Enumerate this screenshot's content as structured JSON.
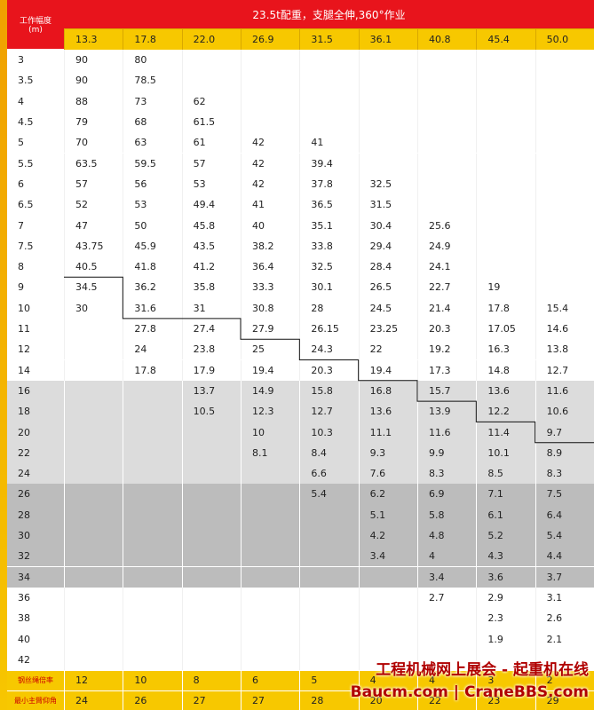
{
  "header": {
    "label_lines": [
      "工作幅度",
      "(m)"
    ],
    "title": "23.5t配重，支腿全伸,360°作业",
    "boom_lengths": [
      "13.3",
      "17.8",
      "22.0",
      "26.9",
      "31.5",
      "36.1",
      "40.8",
      "45.4",
      "50.0"
    ]
  },
  "table": {
    "rows": [
      {
        "radius": "3",
        "values": [
          "90",
          "80",
          null,
          null,
          null,
          null,
          null,
          null,
          null
        ]
      },
      {
        "radius": "3.5",
        "values": [
          "90",
          "78.5",
          null,
          null,
          null,
          null,
          null,
          null,
          null
        ]
      },
      {
        "radius": "4",
        "values": [
          "88",
          "73",
          "62",
          null,
          null,
          null,
          null,
          null,
          null
        ]
      },
      {
        "radius": "4.5",
        "values": [
          "79",
          "68",
          "61.5",
          null,
          null,
          null,
          null,
          null,
          null
        ]
      },
      {
        "radius": "5",
        "values": [
          "70",
          "63",
          "61",
          "42",
          "41",
          null,
          null,
          null,
          null
        ]
      },
      {
        "radius": "5.5",
        "values": [
          "63.5",
          "59.5",
          "57",
          "42",
          "39.4",
          null,
          null,
          null,
          null
        ]
      },
      {
        "radius": "6",
        "values": [
          "57",
          "56",
          "53",
          "42",
          "37.8",
          "32.5",
          null,
          null,
          null
        ]
      },
      {
        "radius": "6.5",
        "values": [
          "52",
          "53",
          "49.4",
          "41",
          "36.5",
          "31.5",
          null,
          null,
          null
        ]
      },
      {
        "radius": "7",
        "values": [
          "47",
          "50",
          "45.8",
          "40",
          "35.1",
          "30.4",
          "25.6",
          null,
          null
        ]
      },
      {
        "radius": "7.5",
        "values": [
          "43.75",
          "45.9",
          "43.5",
          "38.2",
          "33.8",
          "29.4",
          "24.9",
          null,
          null
        ]
      },
      {
        "radius": "8",
        "values": [
          "40.5",
          "41.8",
          "41.2",
          "36.4",
          "32.5",
          "28.4",
          "24.1",
          null,
          null
        ]
      },
      {
        "radius": "9",
        "values": [
          "34.5",
          "36.2",
          "35.8",
          "33.3",
          "30.1",
          "26.5",
          "22.7",
          "19",
          null
        ]
      },
      {
        "radius": "10",
        "values": [
          "30",
          "31.6",
          "31",
          "30.8",
          "28",
          "24.5",
          "21.4",
          "17.8",
          "15.4"
        ]
      },
      {
        "radius": "11",
        "values": [
          null,
          "27.8",
          "27.4",
          "27.9",
          "26.15",
          "23.25",
          "20.3",
          "17.05",
          "14.6"
        ]
      },
      {
        "radius": "12",
        "values": [
          null,
          "24",
          "23.8",
          "25",
          "24.3",
          "22",
          "19.2",
          "16.3",
          "13.8"
        ]
      },
      {
        "radius": "14",
        "values": [
          null,
          "17.8",
          "17.9",
          "19.4",
          "20.3",
          "19.4",
          "17.3",
          "14.8",
          "12.7"
        ]
      },
      {
        "radius": "16",
        "values": [
          null,
          null,
          "13.7",
          "14.9",
          "15.8",
          "16.8",
          "15.7",
          "13.6",
          "11.6"
        ]
      },
      {
        "radius": "18",
        "values": [
          null,
          null,
          "10.5",
          "12.3",
          "12.7",
          "13.6",
          "13.9",
          "12.2",
          "10.6"
        ]
      },
      {
        "radius": "20",
        "values": [
          null,
          null,
          null,
          "10",
          "10.3",
          "11.1",
          "11.6",
          "11.4",
          "9.7"
        ]
      },
      {
        "radius": "22",
        "values": [
          null,
          null,
          null,
          "8.1",
          "8.4",
          "9.3",
          "9.9",
          "10.1",
          "8.9"
        ]
      },
      {
        "radius": "24",
        "values": [
          null,
          null,
          null,
          null,
          "6.6",
          "7.6",
          "8.3",
          "8.5",
          "8.3"
        ]
      },
      {
        "radius": "26",
        "values": [
          null,
          null,
          null,
          null,
          "5.4",
          "6.2",
          "6.9",
          "7.1",
          "7.5"
        ]
      },
      {
        "radius": "28",
        "values": [
          null,
          null,
          null,
          null,
          null,
          "5.1",
          "5.8",
          "6.1",
          "6.4"
        ]
      },
      {
        "radius": "30",
        "values": [
          null,
          null,
          null,
          null,
          null,
          "4.2",
          "4.8",
          "5.2",
          "5.4"
        ]
      },
      {
        "radius": "32",
        "values": [
          null,
          null,
          null,
          null,
          null,
          "3.4",
          "4",
          "4.3",
          "4.4"
        ]
      },
      {
        "radius": "34",
        "values": [
          null,
          null,
          null,
          null,
          null,
          null,
          "3.4",
          "3.6",
          "3.7"
        ]
      },
      {
        "radius": "36",
        "values": [
          null,
          null,
          null,
          null,
          null,
          null,
          "2.7",
          "2.9",
          "3.1"
        ]
      },
      {
        "radius": "38",
        "values": [
          null,
          null,
          null,
          null,
          null,
          null,
          null,
          "2.3",
          "2.6"
        ]
      },
      {
        "radius": "40",
        "values": [
          null,
          null,
          null,
          null,
          null,
          null,
          null,
          "1.9",
          "2.1"
        ]
      },
      {
        "radius": "42",
        "values": [
          null,
          null,
          null,
          null,
          null,
          null,
          null,
          null,
          null
        ]
      }
    ]
  },
  "footer": [
    {
      "label": "钢丝绳倍率",
      "values": [
        "12",
        "10",
        "8",
        "6",
        "5",
        "4",
        "4",
        "3",
        "2"
      ]
    },
    {
      "label": "最小主臂仰角",
      "values": [
        "24",
        "26",
        "27",
        "27",
        "28",
        "20",
        "22",
        "23",
        "29"
      ]
    }
  ],
  "watermark": [
    "工程机械网上展会 - 起重机在线",
    "Baucm.com | CraneBBS.com"
  ]
}
